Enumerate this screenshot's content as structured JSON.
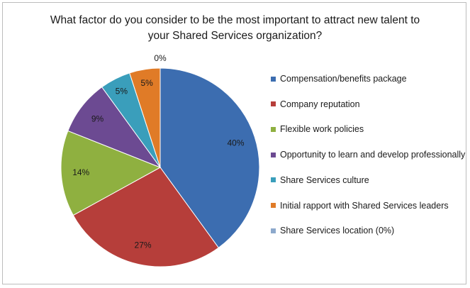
{
  "chart_data": {
    "type": "pie",
    "title": "What factor do you consider to be the most important to attract new talent to\nyour Shared Services organization?",
    "categories": [
      "Compensation/benefits package",
      "Company reputation",
      "Flexible work policies",
      "Opportunity to learn and develop professionally",
      "Share Services culture",
      "Initial rapport with Shared Services leaders",
      "Share Services location (0%)"
    ],
    "values": [
      40,
      27,
      14,
      9,
      5,
      5,
      0
    ],
    "data_labels": [
      "40%",
      "27%",
      "14%",
      "9%",
      "5%",
      "5%",
      "0%"
    ],
    "colors": [
      "#3c6db0",
      "#b63e3a",
      "#8fb040",
      "#6c4a92",
      "#3a9ebb",
      "#e07b27",
      "#8da9cc"
    ],
    "legend_position": "right"
  }
}
